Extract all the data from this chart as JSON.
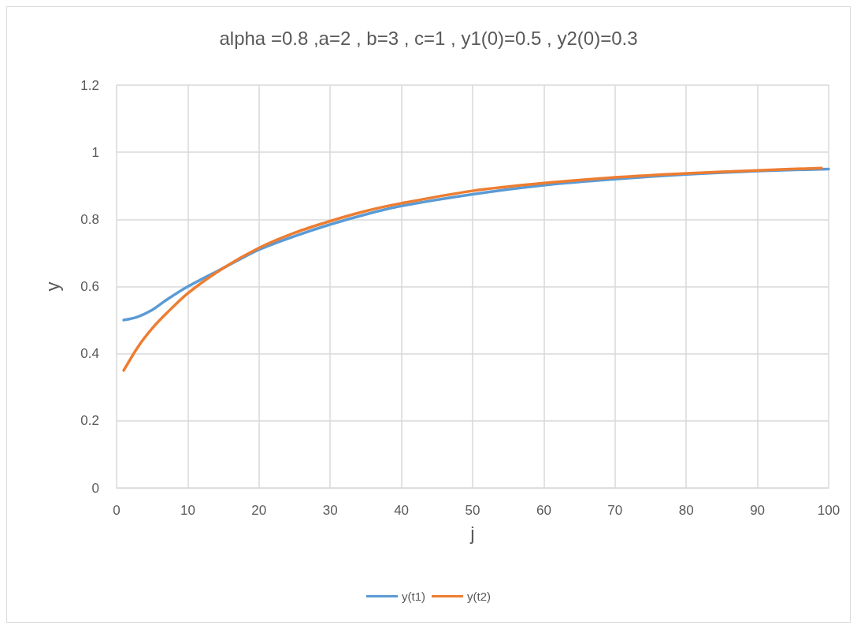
{
  "chart_data": {
    "type": "line",
    "title": "alpha =0.8 ,a=2 , b=3 , c=1 , y1(0)=0.5 , y2(0)=0.3",
    "xlabel": "j",
    "ylabel": "y",
    "series": [
      {
        "name": "y(t1)",
        "color": "#5b9bd5",
        "x": [
          1,
          3,
          5,
          7,
          10,
          15,
          20,
          25,
          30,
          35,
          40,
          50,
          60,
          70,
          80,
          90,
          100
        ],
        "values": [
          0.5,
          0.51,
          0.53,
          0.56,
          0.6,
          0.655,
          0.71,
          0.75,
          0.785,
          0.815,
          0.84,
          0.875,
          0.902,
          0.92,
          0.934,
          0.944,
          0.95
        ]
      },
      {
        "name": "y(t2)",
        "color": "#ed7d31",
        "x": [
          1,
          3,
          5,
          7,
          10,
          15,
          20,
          25,
          30,
          35,
          40,
          50,
          60,
          70,
          80,
          90,
          99
        ],
        "values": [
          0.35,
          0.42,
          0.475,
          0.52,
          0.58,
          0.655,
          0.715,
          0.76,
          0.795,
          0.825,
          0.848,
          0.885,
          0.908,
          0.925,
          0.937,
          0.946,
          0.953
        ]
      }
    ],
    "xlim": [
      0,
      100
    ],
    "xticks": [
      0,
      10,
      20,
      30,
      40,
      50,
      60,
      70,
      80,
      90,
      100
    ],
    "ylim": [
      0,
      1.2
    ],
    "yticks": [
      0,
      0.2,
      0.4,
      0.6,
      0.8,
      1,
      1.2
    ],
    "grid": true,
    "legend": "bottom",
    "marker": "none",
    "line_style": "solid"
  }
}
